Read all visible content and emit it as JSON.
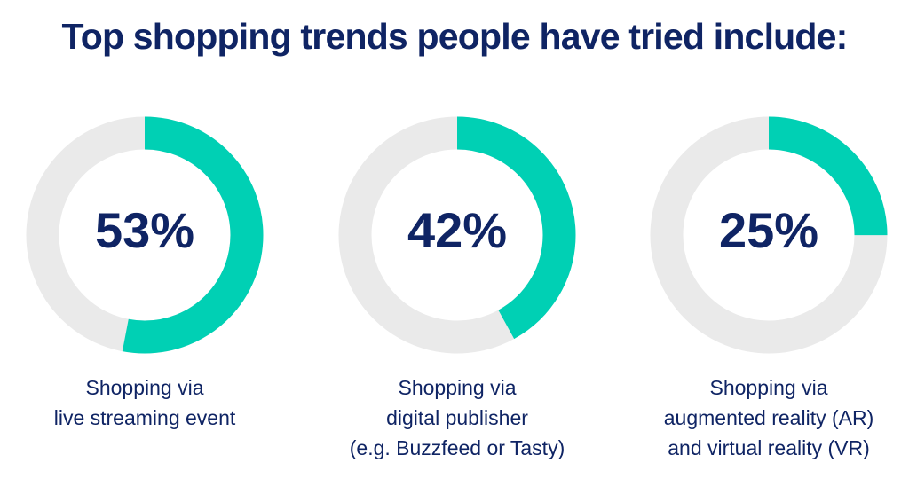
{
  "title": "Top shopping trends people have tried include:",
  "colors": {
    "accent": "#00d0b4",
    "track": "#eaeaea",
    "text": "#0f2464"
  },
  "chart_data": [
    {
      "type": "pie",
      "variant": "donut",
      "value": 53,
      "value_label": "53%",
      "caption_lines": [
        "Shopping via",
        "live streaming event"
      ]
    },
    {
      "type": "pie",
      "variant": "donut",
      "value": 42,
      "value_label": "42%",
      "caption_lines": [
        "Shopping via",
        "digital publisher",
        "(e.g. Buzzfeed or Tasty)"
      ]
    },
    {
      "type": "pie",
      "variant": "donut",
      "value": 25,
      "value_label": "25%",
      "caption_lines": [
        "Shopping via",
        "augmented reality (AR)",
        "and virtual reality (VR)"
      ]
    }
  ]
}
